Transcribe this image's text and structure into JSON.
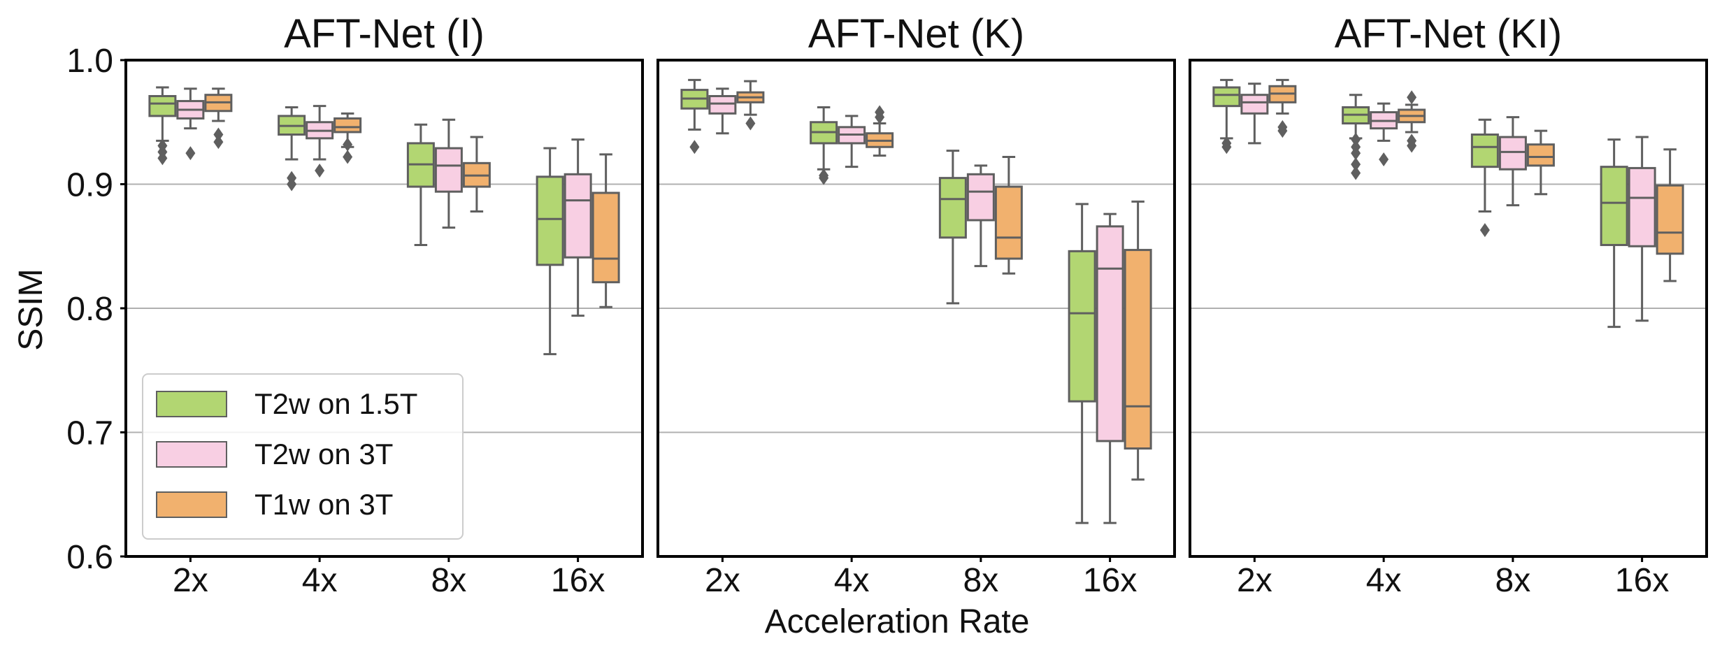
{
  "chart_data": {
    "type": "box",
    "xlabel": "Acceleration Rate",
    "ylabel": "SSIM",
    "ylim": [
      0.6,
      1.0
    ],
    "yticks": [
      0.6,
      0.7,
      0.8,
      0.9,
      1.0
    ],
    "ytick_labels": [
      "0.6",
      "0.7",
      "0.8",
      "0.9",
      "1.0"
    ],
    "grid": "horizontal",
    "legend_position": "lower-left",
    "categories": [
      "2x",
      "4x",
      "8x",
      "16x"
    ],
    "series_styles": [
      {
        "name": "T2w on 1.5T",
        "color": "#b2d672"
      },
      {
        "name": "T2w on 3T",
        "color": "#f8cfe3"
      },
      {
        "name": "T1w on 3T",
        "color": "#f1b16e"
      }
    ],
    "panels": [
      {
        "title": "AFT-Net (I)",
        "boxes": [
          [
            {
              "wl": 0.935,
              "q1": 0.955,
              "med": 0.965,
              "q3": 0.971,
              "wh": 0.978,
              "fliers": [
                0.931,
                0.926,
                0.921
              ]
            },
            {
              "wl": 0.945,
              "q1": 0.953,
              "med": 0.96,
              "q3": 0.967,
              "wh": 0.977,
              "fliers": [
                0.925
              ]
            },
            {
              "wl": 0.951,
              "q1": 0.959,
              "med": 0.966,
              "q3": 0.972,
              "wh": 0.977,
              "fliers": [
                0.94,
                0.934
              ]
            }
          ],
          [
            {
              "wl": 0.92,
              "q1": 0.94,
              "med": 0.947,
              "q3": 0.955,
              "wh": 0.962,
              "fliers": [
                0.905,
                0.9
              ]
            },
            {
              "wl": 0.92,
              "q1": 0.937,
              "med": 0.943,
              "q3": 0.95,
              "wh": 0.963,
              "fliers": [
                0.911
              ]
            },
            {
              "wl": 0.93,
              "q1": 0.942,
              "med": 0.946,
              "q3": 0.953,
              "wh": 0.957,
              "fliers": [
                0.932,
                0.922
              ]
            }
          ],
          [
            {
              "wl": 0.851,
              "q1": 0.898,
              "med": 0.916,
              "q3": 0.933,
              "wh": 0.948,
              "fliers": []
            },
            {
              "wl": 0.865,
              "q1": 0.894,
              "med": 0.915,
              "q3": 0.929,
              "wh": 0.952,
              "fliers": []
            },
            {
              "wl": 0.878,
              "q1": 0.898,
              "med": 0.907,
              "q3": 0.917,
              "wh": 0.938,
              "fliers": []
            }
          ],
          [
            {
              "wl": 0.763,
              "q1": 0.835,
              "med": 0.872,
              "q3": 0.906,
              "wh": 0.929,
              "fliers": []
            },
            {
              "wl": 0.794,
              "q1": 0.841,
              "med": 0.887,
              "q3": 0.908,
              "wh": 0.936,
              "fliers": []
            },
            {
              "wl": 0.801,
              "q1": 0.821,
              "med": 0.84,
              "q3": 0.893,
              "wh": 0.924,
              "fliers": []
            }
          ]
        ]
      },
      {
        "title": "AFT-Net (K)",
        "boxes": [
          [
            {
              "wl": 0.944,
              "q1": 0.961,
              "med": 0.969,
              "q3": 0.976,
              "wh": 0.984,
              "fliers": [
                0.93
              ]
            },
            {
              "wl": 0.941,
              "q1": 0.957,
              "med": 0.965,
              "q3": 0.971,
              "wh": 0.977,
              "fliers": []
            },
            {
              "wl": 0.956,
              "q1": 0.966,
              "med": 0.97,
              "q3": 0.974,
              "wh": 0.983,
              "fliers": [
                0.949
              ]
            }
          ],
          [
            {
              "wl": 0.912,
              "q1": 0.933,
              "med": 0.942,
              "q3": 0.95,
              "wh": 0.962,
              "fliers": [
                0.907,
                0.905
              ]
            },
            {
              "wl": 0.914,
              "q1": 0.933,
              "med": 0.94,
              "q3": 0.946,
              "wh": 0.955,
              "fliers": []
            },
            {
              "wl": 0.923,
              "q1": 0.93,
              "med": 0.935,
              "q3": 0.941,
              "wh": 0.949,
              "fliers": [
                0.958,
                0.954
              ]
            }
          ],
          [
            {
              "wl": 0.804,
              "q1": 0.857,
              "med": 0.888,
              "q3": 0.905,
              "wh": 0.927,
              "fliers": []
            },
            {
              "wl": 0.834,
              "q1": 0.871,
              "med": 0.894,
              "q3": 0.908,
              "wh": 0.915,
              "fliers": []
            },
            {
              "wl": 0.828,
              "q1": 0.84,
              "med": 0.857,
              "q3": 0.898,
              "wh": 0.922,
              "fliers": []
            }
          ],
          [
            {
              "wl": 0.627,
              "q1": 0.725,
              "med": 0.796,
              "q3": 0.846,
              "wh": 0.884,
              "fliers": []
            },
            {
              "wl": 0.627,
              "q1": 0.693,
              "med": 0.832,
              "q3": 0.866,
              "wh": 0.876,
              "fliers": []
            },
            {
              "wl": 0.662,
              "q1": 0.687,
              "med": 0.721,
              "q3": 0.847,
              "wh": 0.886,
              "fliers": []
            }
          ]
        ]
      },
      {
        "title": "AFT-Net (KI)",
        "boxes": [
          [
            {
              "wl": 0.937,
              "q1": 0.963,
              "med": 0.972,
              "q3": 0.978,
              "wh": 0.984,
              "fliers": [
                0.933,
                0.93
              ]
            },
            {
              "wl": 0.933,
              "q1": 0.957,
              "med": 0.966,
              "q3": 0.972,
              "wh": 0.981,
              "fliers": []
            },
            {
              "wl": 0.957,
              "q1": 0.966,
              "med": 0.973,
              "q3": 0.979,
              "wh": 0.984,
              "fliers": [
                0.946,
                0.943
              ]
            }
          ],
          [
            {
              "wl": 0.937,
              "q1": 0.949,
              "med": 0.956,
              "q3": 0.962,
              "wh": 0.972,
              "fliers": [
                0.936,
                0.93,
                0.925,
                0.916,
                0.909
              ]
            },
            {
              "wl": 0.935,
              "q1": 0.945,
              "med": 0.951,
              "q3": 0.958,
              "wh": 0.965,
              "fliers": [
                0.92
              ]
            },
            {
              "wl": 0.942,
              "q1": 0.95,
              "med": 0.955,
              "q3": 0.96,
              "wh": 0.964,
              "fliers": [
                0.97,
                0.935,
                0.931
              ]
            }
          ],
          [
            {
              "wl": 0.878,
              "q1": 0.914,
              "med": 0.93,
              "q3": 0.94,
              "wh": 0.952,
              "fliers": [
                0.863
              ]
            },
            {
              "wl": 0.883,
              "q1": 0.912,
              "med": 0.926,
              "q3": 0.938,
              "wh": 0.954,
              "fliers": []
            },
            {
              "wl": 0.892,
              "q1": 0.915,
              "med": 0.922,
              "q3": 0.932,
              "wh": 0.943,
              "fliers": []
            }
          ],
          [
            {
              "wl": 0.785,
              "q1": 0.851,
              "med": 0.885,
              "q3": 0.914,
              "wh": 0.936,
              "fliers": []
            },
            {
              "wl": 0.79,
              "q1": 0.85,
              "med": 0.889,
              "q3": 0.913,
              "wh": 0.938,
              "fliers": []
            },
            {
              "wl": 0.822,
              "q1": 0.844,
              "med": 0.861,
              "q3": 0.899,
              "wh": 0.928,
              "fliers": []
            }
          ]
        ]
      }
    ]
  }
}
